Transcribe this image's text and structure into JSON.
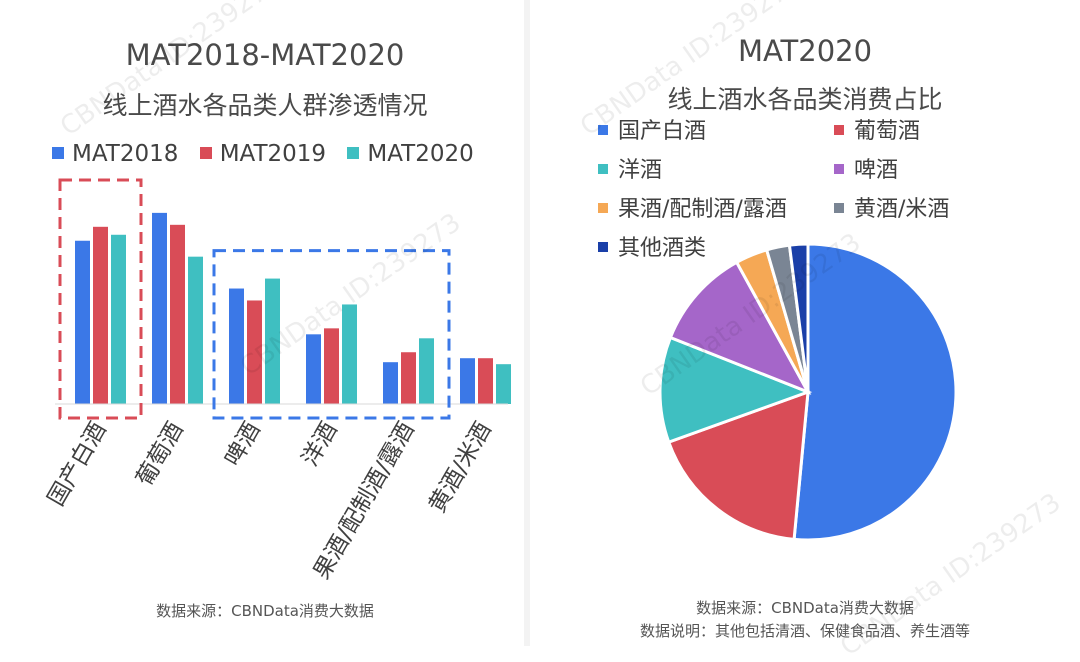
{
  "watermark": "CBNData ID:239273",
  "left_chart": {
    "title_line1": "MAT2018-MAT2020",
    "title_line2": "线上酒水各品类人群渗透情况",
    "source": "数据来源：CBNData消费大数据",
    "legend": [
      {
        "name": "MAT2018",
        "color": "#3b78e7"
      },
      {
        "name": "MAT2019",
        "color": "#d94c57"
      },
      {
        "name": "MAT2020",
        "color": "#3fbfc1"
      }
    ]
  },
  "right_chart": {
    "title_line1": "MAT2020",
    "title_line2": "线上酒水各品类消费占比",
    "source": "数据来源：CBNData消费大数据",
    "note": "数据说明：其他包括清酒、保健食品酒、养生酒等"
  },
  "chart_data": [
    {
      "type": "bar",
      "title": "MAT2018-MAT2020 线上酒水各品类人群渗透情况",
      "categories": [
        "国产白酒",
        "葡萄酒",
        "啤酒",
        "洋酒",
        "果酒/配制酒/露酒",
        "黄酒/米酒"
      ],
      "series": [
        {
          "name": "MAT2018",
          "color": "#3b78e7",
          "values": [
            82,
            96,
            58,
            35,
            21,
            23
          ]
        },
        {
          "name": "MAT2019",
          "color": "#d94c57",
          "values": [
            89,
            90,
            52,
            38,
            26,
            23
          ]
        },
        {
          "name": "MAT2020",
          "color": "#3fbfc1",
          "values": [
            85,
            74,
            63,
            50,
            33,
            20
          ]
        }
      ],
      "ylim": [
        0,
        110
      ],
      "grid": false,
      "legend_position": "top",
      "annotations": [
        {
          "type": "dashed-box",
          "color": "#d94c57",
          "covers": [
            "国产白酒"
          ]
        },
        {
          "type": "dashed-box",
          "color": "#3b78e7",
          "covers": [
            "啤酒",
            "洋酒",
            "果酒/配制酒/露酒"
          ]
        }
      ]
    },
    {
      "type": "pie",
      "title": "MAT2020 线上酒水各品类消费占比",
      "slices": [
        {
          "name": "国产白酒",
          "color": "#3b78e7",
          "value": 51.5
        },
        {
          "name": "葡萄酒",
          "color": "#d94c57",
          "value": 18.0
        },
        {
          "name": "洋酒",
          "color": "#3fbfc1",
          "value": 11.5
        },
        {
          "name": "啤酒",
          "color": "#a566c9",
          "value": 11.0
        },
        {
          "name": "果酒/配制酒/露酒",
          "color": "#f5a855",
          "value": 3.5
        },
        {
          "name": "黄酒/米酒",
          "color": "#7a8594",
          "value": 2.5
        },
        {
          "name": "其他酒类",
          "color": "#1a3fa8",
          "value": 2.0
        }
      ],
      "legend_position": "top"
    }
  ]
}
